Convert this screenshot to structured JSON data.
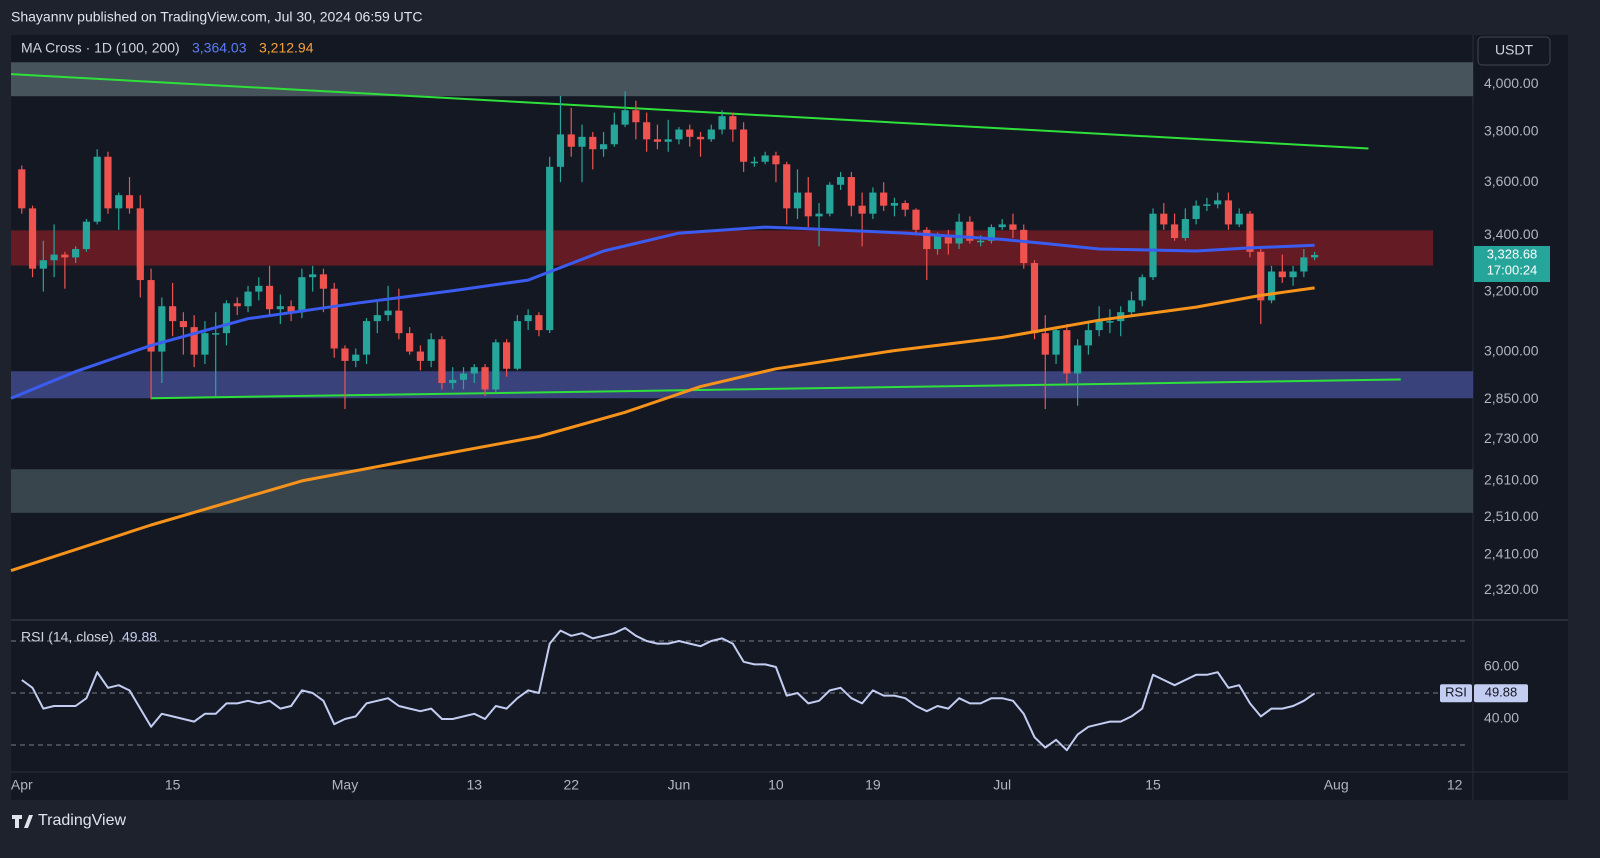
{
  "header": "Shayannv published on TradingView.com, Jul 30, 2024 06:59 UTC",
  "footer": "TradingView",
  "chart_data": {
    "type": "candlestick",
    "indicator_title": "MA Cross · 1D (100, 200)",
    "currency": "USDT",
    "up_color": "#26a69a",
    "down_color": "#ef5350",
    "log_scale": true,
    "xlim": [
      -1,
      134.7
    ],
    "xticks": [
      {
        "value": 0,
        "label": "Apr"
      },
      {
        "value": 14,
        "label": "15"
      },
      {
        "value": 30,
        "label": "May"
      },
      {
        "value": 42,
        "label": "13"
      },
      {
        "value": 51,
        "label": "22"
      },
      {
        "value": 61,
        "label": "Jun"
      },
      {
        "value": 70,
        "label": "10"
      },
      {
        "value": 79,
        "label": "19"
      },
      {
        "value": 91,
        "label": "Jul"
      },
      {
        "value": 105,
        "label": "15"
      },
      {
        "value": 122,
        "label": "Aug"
      },
      {
        "value": 133,
        "label": "12"
      }
    ],
    "ylim": [
      2252,
      4218
    ],
    "yticks": [
      {
        "value": 4000,
        "label": "4,000.00"
      },
      {
        "value": 3800,
        "label": "3,800.00"
      },
      {
        "value": 3600,
        "label": "3,600.00"
      },
      {
        "value": 3400,
        "label": "3,400.00"
      },
      {
        "value": 3200,
        "label": "3,200.00"
      },
      {
        "value": 3000,
        "label": "3,000.00"
      },
      {
        "value": 2850,
        "label": "2,850.00"
      },
      {
        "value": 2730,
        "label": "2,730.00"
      },
      {
        "value": 2610,
        "label": "2,610.00"
      },
      {
        "value": 2510,
        "label": "2,510.00"
      },
      {
        "value": 2410,
        "label": "2,410.00"
      },
      {
        "value": 2320,
        "label": "2,320.00"
      }
    ],
    "x": [
      0,
      1,
      2,
      3,
      4,
      5,
      6,
      7,
      8,
      9,
      10,
      11,
      12,
      13,
      14,
      15,
      16,
      17,
      18,
      19,
      20,
      21,
      22,
      23,
      24,
      25,
      26,
      27,
      28,
      29,
      30,
      31,
      32,
      33,
      34,
      35,
      36,
      37,
      38,
      39,
      40,
      41,
      42,
      43,
      44,
      45,
      46,
      47,
      48,
      49,
      50,
      51,
      52,
      53,
      54,
      55,
      56,
      57,
      58,
      59,
      60,
      61,
      62,
      63,
      64,
      65,
      66,
      67,
      68,
      69,
      70,
      71,
      72,
      73,
      74,
      75,
      76,
      77,
      78,
      79,
      80,
      81,
      82,
      83,
      84,
      85,
      86,
      87,
      88,
      89,
      90,
      91,
      92,
      93,
      94,
      95,
      96,
      97,
      98,
      99,
      100,
      101,
      102,
      103,
      104,
      105,
      106,
      107,
      108,
      109,
      110,
      111,
      112,
      113,
      114,
      115,
      116,
      117,
      118,
      119,
      120
    ],
    "ohlc": [
      [
        3650,
        3665,
        3480,
        3500
      ],
      [
        3500,
        3510,
        3250,
        3280
      ],
      [
        3280,
        3380,
        3200,
        3310
      ],
      [
        3310,
        3440,
        3250,
        3330
      ],
      [
        3330,
        3340,
        3210,
        3320
      ],
      [
        3320,
        3360,
        3300,
        3350
      ],
      [
        3350,
        3460,
        3340,
        3450
      ],
      [
        3450,
        3730,
        3440,
        3700
      ],
      [
        3700,
        3720,
        3480,
        3500
      ],
      [
        3500,
        3560,
        3420,
        3550
      ],
      [
        3550,
        3620,
        3480,
        3500
      ],
      [
        3500,
        3550,
        3180,
        3240
      ],
      [
        3240,
        3280,
        2850,
        3000
      ],
      [
        3000,
        3180,
        2900,
        3150
      ],
      [
        3150,
        3230,
        3050,
        3100
      ],
      [
        3100,
        3130,
        2990,
        3080
      ],
      [
        3080,
        3120,
        2950,
        2990
      ],
      [
        2990,
        3100,
        2960,
        3060
      ],
      [
        3060,
        3130,
        2860,
        3060
      ],
      [
        3060,
        3170,
        3020,
        3160
      ],
      [
        3160,
        3180,
        3120,
        3150
      ],
      [
        3150,
        3220,
        3130,
        3200
      ],
      [
        3200,
        3250,
        3170,
        3220
      ],
      [
        3220,
        3290,
        3120,
        3140
      ],
      [
        3140,
        3190,
        3090,
        3150
      ],
      [
        3150,
        3170,
        3100,
        3130
      ],
      [
        3130,
        3280,
        3110,
        3250
      ],
      [
        3250,
        3290,
        3200,
        3260
      ],
      [
        3260,
        3280,
        3130,
        3210
      ],
      [
        3210,
        3230,
        2980,
        3010
      ],
      [
        3010,
        3020,
        2820,
        2970
      ],
      [
        2970,
        3010,
        2950,
        2990
      ],
      [
        2990,
        3110,
        2960,
        3100
      ],
      [
        3100,
        3170,
        3060,
        3120
      ],
      [
        3120,
        3220,
        3100,
        3135
      ],
      [
        3135,
        3210,
        3040,
        3060
      ],
      [
        3060,
        3080,
        2990,
        3000
      ],
      [
        3000,
        3020,
        2940,
        2970
      ],
      [
        2970,
        3060,
        2950,
        3040
      ],
      [
        3040,
        3050,
        2880,
        2900
      ],
      [
        2900,
        2950,
        2880,
        2910
      ],
      [
        2910,
        2950,
        2880,
        2930
      ],
      [
        2930,
        2960,
        2900,
        2950
      ],
      [
        2950,
        2960,
        2860,
        2880
      ],
      [
        2880,
        3040,
        2870,
        3030
      ],
      [
        3030,
        3040,
        2920,
        2945
      ],
      [
        2945,
        3120,
        2940,
        3100
      ],
      [
        3100,
        3140,
        3070,
        3120
      ],
      [
        3120,
        3130,
        3050,
        3070
      ],
      [
        3070,
        3700,
        3060,
        3660
      ],
      [
        3660,
        3950,
        3600,
        3790
      ],
      [
        3790,
        3900,
        3700,
        3740
      ],
      [
        3740,
        3830,
        3600,
        3780
      ],
      [
        3780,
        3800,
        3650,
        3730
      ],
      [
        3730,
        3800,
        3700,
        3750
      ],
      [
        3750,
        3880,
        3740,
        3830
      ],
      [
        3830,
        3970,
        3820,
        3890
      ],
      [
        3890,
        3930,
        3770,
        3840
      ],
      [
        3840,
        3880,
        3720,
        3770
      ],
      [
        3770,
        3830,
        3730,
        3760
      ],
      [
        3760,
        3850,
        3720,
        3770
      ],
      [
        3770,
        3820,
        3750,
        3810
      ],
      [
        3810,
        3830,
        3740,
        3780
      ],
      [
        3780,
        3800,
        3700,
        3770
      ],
      [
        3770,
        3830,
        3760,
        3810
      ],
      [
        3810,
        3890,
        3790,
        3865
      ],
      [
        3865,
        3880,
        3760,
        3810
      ],
      [
        3810,
        3840,
        3640,
        3680
      ],
      [
        3680,
        3700,
        3660,
        3680
      ],
      [
        3680,
        3720,
        3670,
        3705
      ],
      [
        3705,
        3720,
        3600,
        3670
      ],
      [
        3670,
        3680,
        3440,
        3500
      ],
      [
        3500,
        3650,
        3460,
        3560
      ],
      [
        3560,
        3620,
        3430,
        3470
      ],
      [
        3470,
        3520,
        3360,
        3480
      ],
      [
        3480,
        3600,
        3470,
        3590
      ],
      [
        3590,
        3640,
        3570,
        3620
      ],
      [
        3620,
        3640,
        3470,
        3510
      ],
      [
        3510,
        3560,
        3360,
        3480
      ],
      [
        3480,
        3580,
        3460,
        3560
      ],
      [
        3560,
        3600,
        3490,
        3510
      ],
      [
        3510,
        3540,
        3470,
        3520
      ],
      [
        3520,
        3530,
        3470,
        3495
      ],
      [
        3495,
        3500,
        3400,
        3420
      ],
      [
        3420,
        3430,
        3240,
        3350
      ],
      [
        3350,
        3410,
        3330,
        3400
      ],
      [
        3400,
        3420,
        3330,
        3370
      ],
      [
        3370,
        3480,
        3350,
        3450
      ],
      [
        3450,
        3470,
        3370,
        3380
      ],
      [
        3380,
        3400,
        3360,
        3380
      ],
      [
        3380,
        3440,
        3370,
        3430
      ],
      [
        3430,
        3460,
        3420,
        3440
      ],
      [
        3440,
        3480,
        3390,
        3420
      ],
      [
        3420,
        3440,
        3280,
        3300
      ],
      [
        3300,
        3310,
        3040,
        3060
      ],
      [
        3060,
        3120,
        2820,
        2990
      ],
      [
        2990,
        3080,
        2960,
        3070
      ],
      [
        3070,
        3090,
        2900,
        2930
      ],
      [
        2930,
        3040,
        2830,
        3020
      ],
      [
        3020,
        3100,
        2990,
        3070
      ],
      [
        3070,
        3150,
        3050,
        3100
      ],
      [
        3100,
        3140,
        3060,
        3100
      ],
      [
        3100,
        3150,
        3050,
        3130
      ],
      [
        3130,
        3200,
        3120,
        3170
      ],
      [
        3170,
        3260,
        3150,
        3250
      ],
      [
        3250,
        3500,
        3240,
        3480
      ],
      [
        3480,
        3520,
        3420,
        3440
      ],
      [
        3440,
        3480,
        3380,
        3390
      ],
      [
        3390,
        3500,
        3380,
        3460
      ],
      [
        3460,
        3530,
        3440,
        3510
      ],
      [
        3510,
        3540,
        3490,
        3515
      ],
      [
        3515,
        3560,
        3500,
        3530
      ],
      [
        3530,
        3560,
        3420,
        3440
      ],
      [
        3440,
        3500,
        3430,
        3480
      ],
      [
        3480,
        3490,
        3320,
        3340
      ],
      [
        3340,
        3350,
        3090,
        3170
      ],
      [
        3170,
        3290,
        3160,
        3270
      ],
      [
        3270,
        3330,
        3230,
        3250
      ],
      [
        3250,
        3290,
        3220,
        3270
      ],
      [
        3270,
        3350,
        3250,
        3320
      ],
      [
        3320,
        3340,
        3310,
        3328.68
      ]
    ],
    "last_price_label": "3,328.68",
    "countdown": "17:00:24",
    "zones": [
      {
        "x": [
          -1,
          134.7
        ],
        "values": [
          3949,
          4096
        ],
        "color": "#4d5b63"
      },
      {
        "x": [
          -1,
          131
        ],
        "values": [
          3291,
          3418
        ],
        "color": "#6e1c24"
      },
      {
        "x": [
          -1,
          134.7
        ],
        "values": [
          2853,
          2937
        ],
        "color": "#3d4785"
      },
      {
        "x": [
          -1,
          134.7
        ],
        "values": [
          2522,
          2643
        ],
        "color": "#3d4a52"
      }
    ],
    "trendlines": [
      {
        "x": [
          -1,
          125
        ],
        "values": [
          4044,
          3733
        ],
        "color": "#2ee03a"
      },
      {
        "x": [
          12,
          128
        ],
        "values": [
          2853,
          2911
        ],
        "color": "#2ee03a"
      }
    ],
    "moving_averages": [
      {
        "x": [
          -1,
          5,
          12,
          21,
          31,
          40,
          47,
          54,
          61,
          69,
          72,
          82,
          91,
          95,
          100,
          109,
          114,
          120
        ],
        "values": [
          2853,
          2936,
          3020,
          3108,
          3160,
          3203,
          3240,
          3343,
          3408,
          3430,
          3426,
          3408,
          3385,
          3370,
          3350,
          3343,
          3354,
          3364.03
        ],
        "last_label": "3,364.03",
        "color": "#3b5cf0"
      },
      {
        "x": [
          -1,
          12,
          26,
          38,
          48,
          56,
          63,
          70,
          81,
          91,
          100,
          109,
          115,
          120
        ],
        "values": [
          2370,
          2489,
          2610,
          2680,
          2738,
          2810,
          2889,
          2945,
          3003,
          3046,
          3103,
          3147,
          3187,
          3212.94
        ],
        "last_label": "3,212.94",
        "color": "#f7931a"
      }
    ],
    "rsi": {
      "title": "RSI (14, close)",
      "name": "RSI",
      "color": "#c3cdf2",
      "values": [
        55,
        52,
        44,
        45,
        45,
        45,
        48,
        58,
        52,
        53,
        51,
        44,
        37,
        42,
        41,
        40,
        39,
        42,
        42,
        46,
        46,
        47,
        46,
        47,
        44,
        45,
        51,
        50,
        47,
        38,
        40,
        41,
        46,
        47,
        48,
        45,
        44,
        43,
        44,
        40,
        40,
        41,
        42,
        40,
        45,
        44,
        48,
        51,
        50,
        69,
        74,
        72,
        73,
        71,
        72,
        73,
        75,
        72,
        70,
        69,
        69,
        70,
        69,
        68,
        70,
        71,
        69,
        62,
        61,
        61,
        60,
        49,
        50,
        46,
        47,
        51,
        52,
        48,
        46,
        51,
        49,
        49,
        48,
        45,
        43,
        45,
        44,
        48,
        46,
        46,
        48,
        48,
        47,
        42,
        33,
        29,
        32,
        28,
        34,
        37,
        38,
        39,
        39,
        41,
        44,
        57,
        55,
        53,
        55,
        57,
        57,
        58,
        52,
        53,
        46,
        41,
        44,
        44,
        45,
        47,
        49.88
      ],
      "value_label": "49.88",
      "ylim": [
        19.6,
        77.3
      ],
      "yticks": [
        {
          "value": 40,
          "label": "40.00"
        },
        {
          "value": 60,
          "label": "60.00"
        }
      ],
      "levels": [
        30,
        50,
        70
      ]
    }
  }
}
